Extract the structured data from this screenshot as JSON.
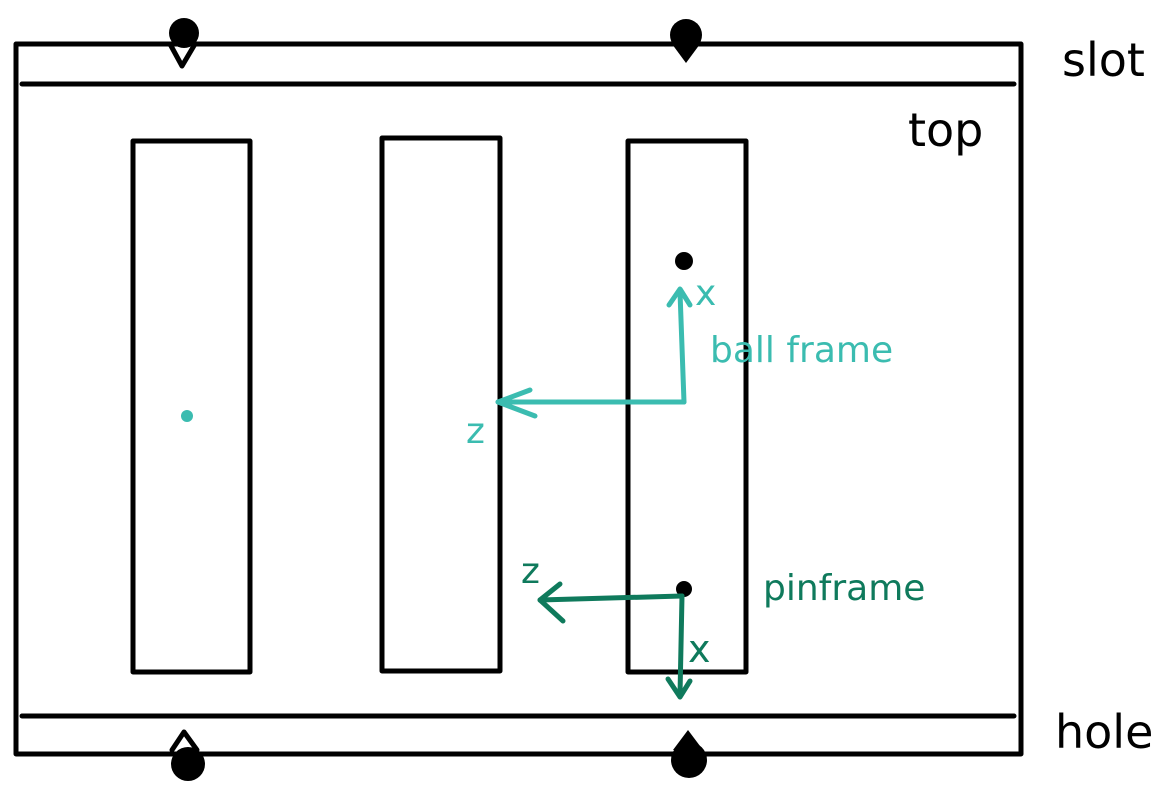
{
  "labels": {
    "slot": "slot",
    "top": "top",
    "hole": "hole",
    "ball_frame": "ball frame",
    "pin_frame": "pinframe",
    "ball_x": "x",
    "ball_z": "z",
    "pin_x": "x",
    "pin_z": "z"
  },
  "colors": {
    "ink": "#000000",
    "ball_frame": "#3bbcb0",
    "pin_frame": "#0f7a5c",
    "background": "#ffffff"
  }
}
